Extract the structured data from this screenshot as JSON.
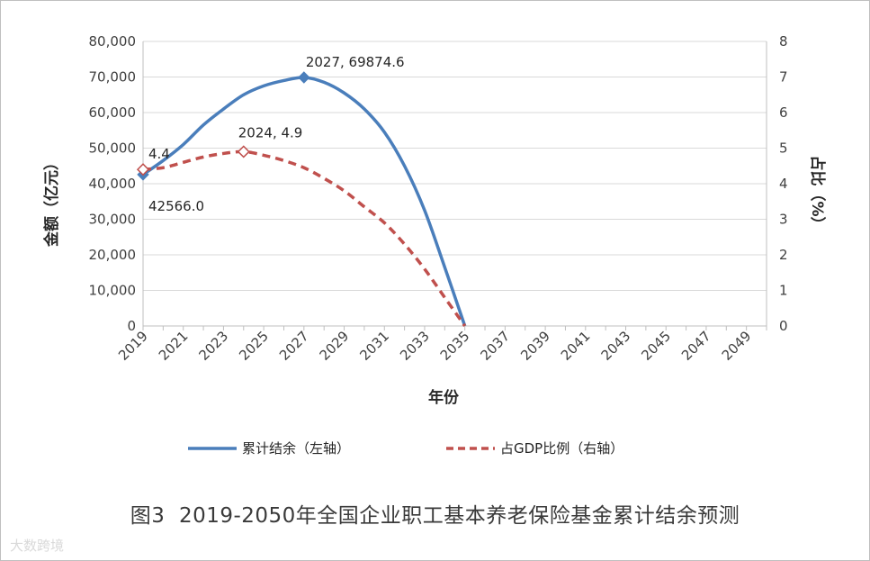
{
  "caption": "图3  2019-2050年全国企业职工基本养老保险基金累计结余预测",
  "watermark": "大数跨境",
  "chart_data": {
    "type": "line",
    "xlabel": "年份",
    "ylabel_left": "金额（亿元）",
    "ylabel_right": "占比（%）",
    "x_range": [
      2019,
      2050
    ],
    "x_tick_labels": [
      "2019",
      "2021",
      "2023",
      "2025",
      "2027",
      "2029",
      "2031",
      "2033",
      "2035",
      "2037",
      "2039",
      "2041",
      "2043",
      "2045",
      "2047",
      "2049"
    ],
    "y_left_range": [
      0,
      80000
    ],
    "y_left_ticks": [
      "0",
      "10,000",
      "20,000",
      "30,000",
      "40,000",
      "50,000",
      "60,000",
      "70,000",
      "80,000"
    ],
    "y_right_range": [
      0,
      8
    ],
    "y_right_ticks": [
      "0",
      "1",
      "2",
      "3",
      "4",
      "5",
      "6",
      "7",
      "8"
    ],
    "grid": "horizontal",
    "legend_position": "bottom",
    "series": [
      {
        "name": "累计结余（左轴）",
        "axis": "left",
        "style": "solid",
        "color": "#4a7ebb",
        "x": [
          2019,
          2020,
          2021,
          2022,
          2023,
          2024,
          2025,
          2026,
          2027,
          2028,
          2029,
          2030,
          2031,
          2032,
          2033,
          2034,
          2035
        ],
        "y": [
          42566.0,
          46500,
          51000,
          56500,
          61000,
          65000,
          67500,
          69000,
          69874.6,
          68500,
          65500,
          61000,
          54500,
          45000,
          32500,
          16500,
          0
        ]
      },
      {
        "name": "占GDP比例（右轴）",
        "axis": "right",
        "style": "dashed",
        "color": "#c0504d",
        "x": [
          2019,
          2020,
          2021,
          2022,
          2023,
          2024,
          2025,
          2026,
          2027,
          2028,
          2029,
          2030,
          2031,
          2032,
          2033,
          2034,
          2035
        ],
        "y": [
          4.4,
          4.45,
          4.6,
          4.75,
          4.85,
          4.9,
          4.8,
          4.65,
          4.45,
          4.15,
          3.8,
          3.35,
          2.9,
          2.3,
          1.6,
          0.8,
          0.0
        ]
      }
    ],
    "annotations": [
      {
        "series": 0,
        "x": 2019,
        "label": "42566.0"
      },
      {
        "series": 0,
        "x": 2027,
        "label": "2027, 69874.6"
      },
      {
        "series": 1,
        "x": 2019,
        "label": "4.4"
      },
      {
        "series": 1,
        "x": 2024,
        "label": "2024, 4.9"
      }
    ]
  }
}
